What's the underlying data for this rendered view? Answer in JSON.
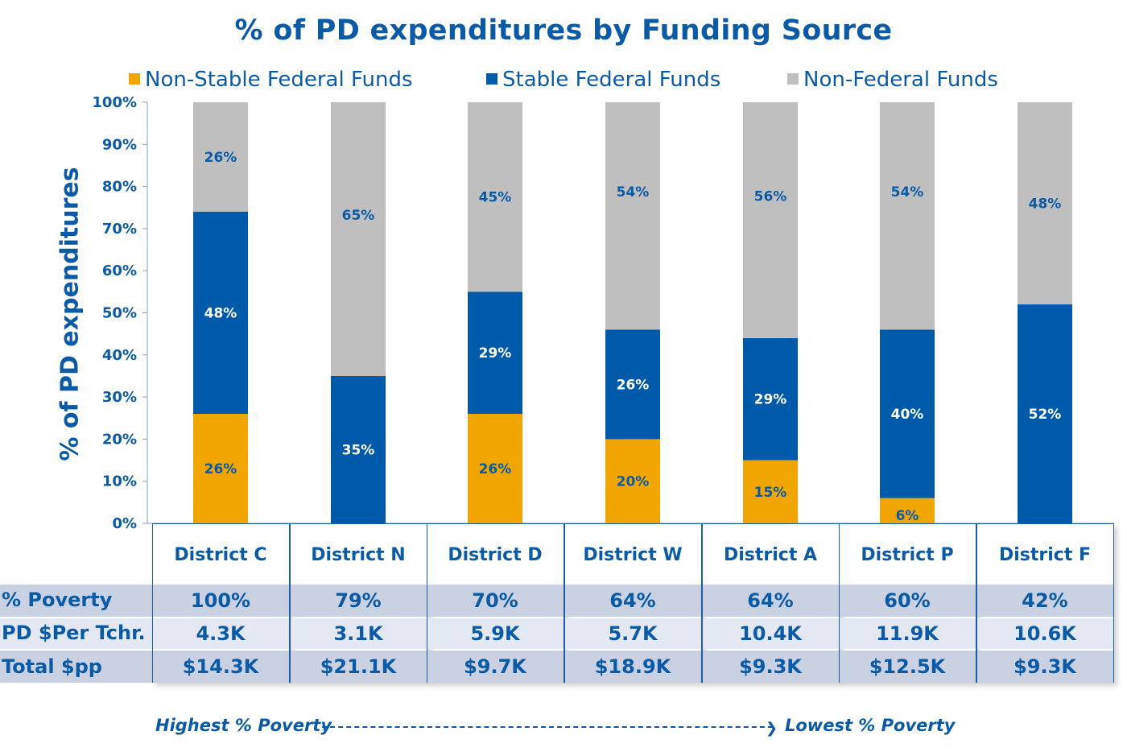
{
  "chart_data": {
    "type": "bar",
    "stacked": true,
    "title": "% of PD expenditures by Funding Source",
    "xlabel": "",
    "ylabel": "% of PD expenditures",
    "ylim": [
      0,
      100
    ],
    "yticks": [
      "0%",
      "10%",
      "20%",
      "30%",
      "40%",
      "50%",
      "60%",
      "70%",
      "80%",
      "90%",
      "100%"
    ],
    "grid": false,
    "legend_position": "top",
    "categories": [
      "District C",
      "District N",
      "District D",
      "District W",
      "District A",
      "District P",
      "District F"
    ],
    "series": [
      {
        "name": "Non-Stable Federal Funds",
        "color": "#f0a500",
        "label_color": "#0b5aa6",
        "values": [
          26,
          0,
          26,
          20,
          15,
          6,
          0
        ],
        "labels": [
          "26%",
          "",
          "26%",
          "20%",
          "15%",
          "6%",
          ""
        ]
      },
      {
        "name": "Stable Federal Funds",
        "color": "#005aaa",
        "label_color": "#ffffff",
        "values": [
          48,
          35,
          29,
          26,
          29,
          40,
          52
        ],
        "labels": [
          "48%",
          "35%",
          "29%",
          "26%",
          "29%",
          "40%",
          "52%"
        ]
      },
      {
        "name": "Non-Federal Funds",
        "color": "#bfbfbf",
        "label_color": "#0b5aa6",
        "values": [
          26,
          65,
          45,
          54,
          56,
          54,
          48
        ],
        "labels": [
          "26%",
          "65%",
          "45%",
          "54%",
          "56%",
          "54%",
          "48%"
        ]
      }
    ]
  },
  "table": {
    "rows": [
      {
        "label": "% Poverty",
        "values": [
          "100%",
          "79%",
          "70%",
          "64%",
          "64%",
          "60%",
          "42%"
        ]
      },
      {
        "label": "PD $Per Tchr.",
        "values": [
          "4.3K",
          "3.1K",
          "5.9K",
          "5.7K",
          "10.4K",
          "11.9K",
          "10.6K"
        ]
      },
      {
        "label": "Total $pp",
        "values": [
          "$14.3K",
          "$21.1K",
          "$9.7K",
          "$18.9K",
          "$9.3K",
          "$12.5K",
          "$9.3K"
        ]
      }
    ]
  },
  "footer": {
    "left": "Highest % Poverty",
    "right": "Lowest % Poverty"
  },
  "colors": {
    "text": "#0b5aa6",
    "row_dark": "#c9d1e2",
    "row_light": "#e4e8f2"
  }
}
